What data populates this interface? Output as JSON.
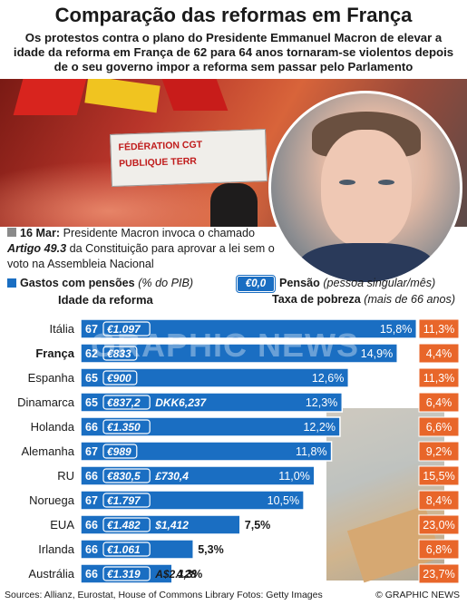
{
  "header": {
    "title": "Comparação das reformas em França",
    "subtitle": "Os protestos contra o plano do Presidente Emmanuel Macron de elevar a idade da reforma em França de 62 para 64 anos tornaram-se violentos depois de o seu governo impor a reforma sem passar pelo Parlamento"
  },
  "photo": {
    "banner_line1": "FÉDÉRATION CGT",
    "banner_line2": "PUBLIQUE TERR"
  },
  "note": {
    "date": "16 Mar:",
    "text1": " Presidente Macron invoca o chamado ",
    "article": "Artigo 49.3",
    "text2": " da Constituição para aprovar a lei sem o voto na Assembleia Nacional"
  },
  "legend": {
    "spending_label": "Gastos com pensões",
    "spending_unit": "(% do PIB)",
    "pension_sample": "€0,0",
    "pension_label": "Pensão",
    "pension_unit": "(pessoa singular/mês)",
    "age_header": "Idade da reforma",
    "poverty_header": "Taxa de pobreza",
    "poverty_unit": "(mais de 66 anos)"
  },
  "colors": {
    "bar": "#1a6ec2",
    "bar_edge": "#ffffff",
    "poverty": "#e8662a",
    "highlight_text": "#1a1a1a"
  },
  "chart_data": {
    "type": "bar",
    "orientation": "horizontal",
    "categories": [
      "Itália",
      "França",
      "Espanha",
      "Dinamarca",
      "Holanda",
      "Alemanha",
      "RU",
      "Noruega",
      "EUA",
      "Irlanda",
      "Austrália"
    ],
    "highlight": "França",
    "series": [
      {
        "name": "Gastos com pensões",
        "unit": "% do PIB",
        "values": [
          15.8,
          14.9,
          12.6,
          12.3,
          12.2,
          11.8,
          11.0,
          10.5,
          7.5,
          5.3,
          4.3
        ],
        "labels": [
          "15,8%",
          "14,9%",
          "12,6%",
          "12,3%",
          "12,2%",
          "11,8%",
          "11,0%",
          "10,5%",
          "7,5%",
          "5,3%",
          "4,3%"
        ]
      }
    ],
    "retirement_age": [
      "67",
      "62",
      "65",
      "65",
      "66",
      "67",
      "66",
      "67",
      "66",
      "66",
      "66"
    ],
    "pension_eur": [
      "€1.097",
      "€833",
      "€900",
      "€837,2",
      "€1.350",
      "€989",
      "€830,5",
      "€1.797",
      "€1.482",
      "€1.061",
      "€1.319"
    ],
    "pension_local": [
      "",
      "",
      "",
      "DKK6,237",
      "",
      "",
      "£730,4",
      "",
      "$1,412",
      "",
      "A$2.128"
    ],
    "poverty_rate": [
      "11,3%",
      "4,4%",
      "11,3%",
      "6,4%",
      "6,6%",
      "9,2%",
      "15,5%",
      "8,4%",
      "23,0%",
      "6,8%",
      "23,7%"
    ],
    "xlim": [
      0,
      16
    ]
  },
  "footer": {
    "sources": "Sources: Allianz, Eurostat, House of Commons Library   Fotos: Getty Images",
    "credit": "© GRAPHIC NEWS"
  },
  "watermark": "GRAPHIC NEWS"
}
